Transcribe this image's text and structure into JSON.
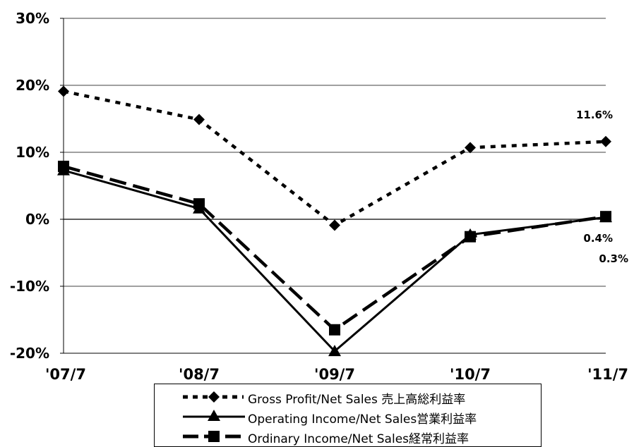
{
  "chart_data": {
    "type": "line",
    "categories": [
      "'07/7",
      "'08/7",
      "'09/7",
      "'10/7",
      "'11/7"
    ],
    "ylim": [
      -20,
      30
    ],
    "yticks": [
      30,
      20,
      10,
      0,
      -10,
      -20
    ],
    "ytick_labels": [
      "30%",
      "20%",
      "10%",
      "0%",
      "-10%",
      "-20%"
    ],
    "grid": true,
    "legend_position": "bottom",
    "series": [
      {
        "name": "Gross Profit/Net Sales 売上高総利益率",
        "values": [
          19.1,
          14.9,
          -0.9,
          10.7,
          11.6
        ],
        "marker": "diamond",
        "style": "dotted"
      },
      {
        "name": "Operating Income/Net Sales営業利益率",
        "values": [
          7.3,
          1.6,
          -19.7,
          -2.3,
          0.3
        ],
        "marker": "triangle",
        "style": "solid"
      },
      {
        "name": "Ordinary Income/Net Sales経常利益率",
        "values": [
          7.9,
          2.3,
          -16.5,
          -2.6,
          0.4
        ],
        "marker": "square",
        "style": "dashed"
      }
    ],
    "annotations": [
      "11.6%",
      "0.4%",
      "0.3%"
    ]
  }
}
